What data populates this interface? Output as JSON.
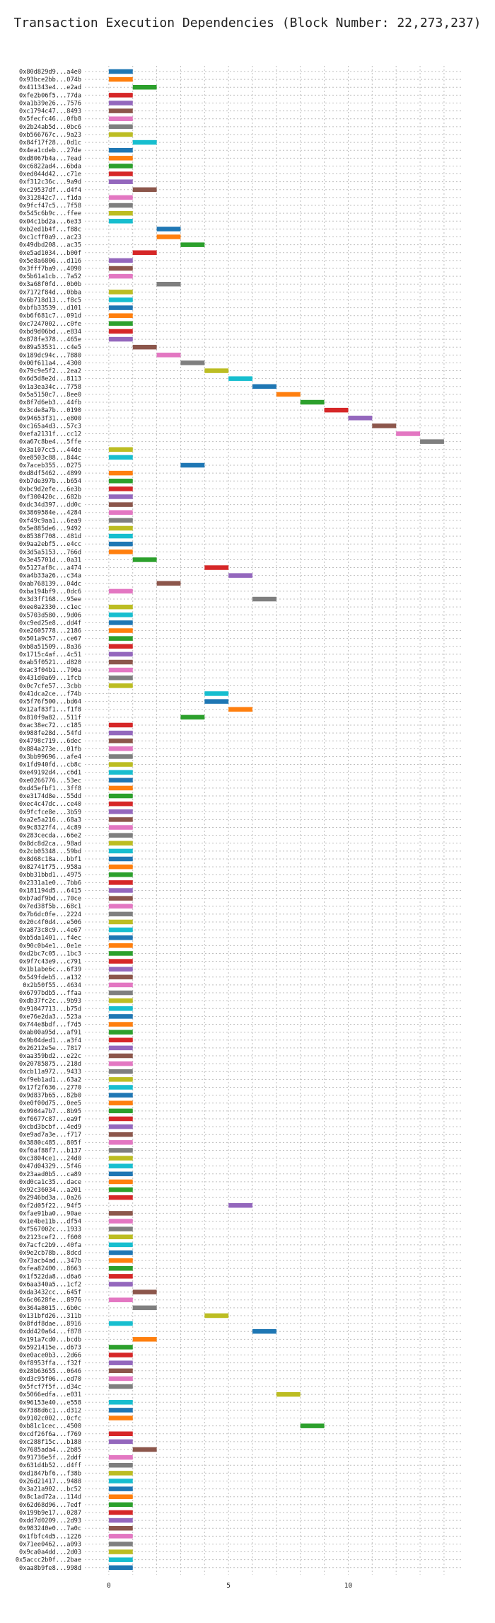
{
  "chart_data": {
    "type": "bar",
    "orientation": "horizontal",
    "title": "Transaction Execution Dependencies (Block Number: 22,273,237)",
    "xlabel": "",
    "ylabel": "",
    "xlim": [
      -1,
      14.8
    ],
    "xticks": [
      0,
      5,
      10
    ],
    "grid": true,
    "palette": [
      "#1f77b4",
      "#ff7f0e",
      "#2ca02c",
      "#d62728",
      "#9467bd",
      "#8c564b",
      "#e377c2",
      "#7f7f7f",
      "#bcbd22",
      "#17becf"
    ],
    "transactions": [
      [
        "0x80d829d9...a4e0",
        0
      ],
      [
        "0x93bce2bb...074b",
        0
      ],
      [
        "0x411343e4...e2ad",
        1
      ],
      [
        "0xfe2b06f5...77da",
        0
      ],
      [
        "0xa1b39e26...7576",
        0
      ],
      [
        "0xc1794c47...8493",
        0
      ],
      [
        "0x5fecfc46...0fb8",
        0
      ],
      [
        "0x2b24ab5d...0bc6",
        0
      ],
      [
        "0xb566767c...9a23",
        0
      ],
      [
        "0x84f17f28...0d1c",
        1
      ],
      [
        "0x4ea1cdeb...27de",
        0
      ],
      [
        "0xd8067b4a...7ead",
        0
      ],
      [
        "0xc6822ad4...6bda",
        0
      ],
      [
        "0xed044d42...c71e",
        0
      ],
      [
        "0xf312c36c...9a9d",
        0
      ],
      [
        "0xc29537df...d4f4",
        1
      ],
      [
        "0x312842c7...f1da",
        0
      ],
      [
        "0x9fcf47c5...7f58",
        0
      ],
      [
        "0x545c6b9c...ffee",
        0
      ],
      [
        "0x04c1bd2a...6e33",
        0
      ],
      [
        "0xb2ed1b4f...f88c",
        2
      ],
      [
        "0xc1cff0a9...ac23",
        2
      ],
      [
        "0x49dbd208...ac35",
        3
      ],
      [
        "0xe5ad1034...b00f",
        1
      ],
      [
        "0x5e8a6806...d116",
        0
      ],
      [
        "0x3fff7ba9...4090",
        0
      ],
      [
        "0x5b61a1cb...7a52",
        0
      ],
      [
        "0x3a68f0fd...0b0b",
        2
      ],
      [
        "0x7172f84d...0bba",
        0
      ],
      [
        "0x6b718d13...f8c5",
        0
      ],
      [
        "0xbfb33539...d101",
        0
      ],
      [
        "0xb6f681c7...091d",
        0
      ],
      [
        "0xc7247002...c0fe",
        0
      ],
      [
        "0xbd9d06bd...e834",
        0
      ],
      [
        "0x878fe378...465e",
        0
      ],
      [
        "0x89a53531...c4e5",
        1
      ],
      [
        "0x189dc94c...7880",
        2
      ],
      [
        "0x00f611a4...4300",
        3
      ],
      [
        "0x79c9e5f2...2ea2",
        4
      ],
      [
        "0x6d5d8e2d...8113",
        5
      ],
      [
        "0x1a3ea34c...7758",
        6
      ],
      [
        "0x5a5150c7...8ee0",
        7
      ],
      [
        "0x8f7d6eb3...44fb",
        8
      ],
      [
        "0x3cde8a7b...0190",
        9
      ],
      [
        "0x94653f31...e800",
        10
      ],
      [
        "0xc165a4d3...57c3",
        11
      ],
      [
        "0xefa2131f...cc12",
        12
      ],
      [
        "0xa67c8be4...5ffe",
        13
      ],
      [
        "0x3a107cc5...44de",
        0
      ],
      [
        "0xe8503c88...844c",
        0
      ],
      [
        "0x7aceb355...0275",
        3
      ],
      [
        "0xd8df5462...4899",
        0
      ],
      [
        "0xb7de397b...b654",
        0
      ],
      [
        "0xbc9d2efe...6e3b",
        0
      ],
      [
        "0xf300420c...682b",
        0
      ],
      [
        "0xdc34d397...dd0c",
        0
      ],
      [
        "0x3869584e...4284",
        0
      ],
      [
        "0xf49c9aa1...6ea9",
        0
      ],
      [
        "0x5e885de6...9492",
        0
      ],
      [
        "0x8538f708...481d",
        0
      ],
      [
        "0x9aa2ebf5...e4cc",
        0
      ],
      [
        "0x3d5a5153...766d",
        0
      ],
      [
        "0x3e45701d...0a31",
        1
      ],
      [
        "0x5127af8c...a474",
        4
      ],
      [
        "0xa4b33a26...c34a",
        5
      ],
      [
        "0xab768139...04dc",
        2
      ],
      [
        "0xba194bf9...0dc6",
        0
      ],
      [
        "0x3d3ff168...95ee",
        6
      ],
      [
        "0xee0a2330...c1ec",
        0
      ],
      [
        "0x5703d580...9d06",
        0
      ],
      [
        "0xc9ed25e8...dd4f",
        0
      ],
      [
        "0xe2605778...2186",
        0
      ],
      [
        "0x501a9c57...ce67",
        0
      ],
      [
        "0xb8a51509...8a36",
        0
      ],
      [
        "0x1715c4af...4c51",
        0
      ],
      [
        "0xab5f0521...d820",
        0
      ],
      [
        "0xac3f04b1...790a",
        0
      ],
      [
        "0x431d0a69...1fcb",
        0
      ],
      [
        "0x0c7cfe57...3cbb",
        0
      ],
      [
        "0x41dca2ce...f74b",
        4
      ],
      [
        "0x5f76f500...bd64",
        4
      ],
      [
        "0x12af83f1...f1f8",
        5
      ],
      [
        "0x810f9a82...511f",
        3
      ],
      [
        "0xac38ec72...c185",
        0
      ],
      [
        "0x988fe28d...54fd",
        0
      ],
      [
        "0x4798c719...6dec",
        0
      ],
      [
        "0x884a273e...01fb",
        0
      ],
      [
        "0x3bb99696...afe4",
        0
      ],
      [
        "0x1fd940fd...cb8c",
        0
      ],
      [
        "0xe49192d4...c6d1",
        0
      ],
      [
        "0xe0266776...53ec",
        0
      ],
      [
        "0xd45efbf1...3ff8",
        0
      ],
      [
        "0xe3174d8e...55dd",
        0
      ],
      [
        "0xec4c47dc...ce40",
        0
      ],
      [
        "0x9fcfce8e...3b59",
        0
      ],
      [
        "0xa2e5a216...68a3",
        0
      ],
      [
        "0x9c8327f4...4c89",
        0
      ],
      [
        "0x283cecda...66e2",
        0
      ],
      [
        "0x8dc8d2ca...98ad",
        0
      ],
      [
        "0x2cb05348...59bd",
        0
      ],
      [
        "0x8d68c18a...bbf1",
        0
      ],
      [
        "0x82741f75...958a",
        0
      ],
      [
        "0xbb31bbd1...4975",
        0
      ],
      [
        "0x2331a1e0...7bb6",
        0
      ],
      [
        "0x181194d5...6415",
        0
      ],
      [
        "0xb7adf9bd...70ce",
        0
      ],
      [
        "0x7ed38f5b...68c1",
        0
      ],
      [
        "0x7b6dc0fe...2224",
        0
      ],
      [
        "0x20c4f0d4...e506",
        0
      ],
      [
        "0xa873c8c9...4e67",
        0
      ],
      [
        "0xb5da1401...f4ec",
        0
      ],
      [
        "0x90c0b4e1...0e1e",
        0
      ],
      [
        "0xd2bc7c05...1bc3",
        0
      ],
      [
        "0x9f7c43e9...c791",
        0
      ],
      [
        "0x1b1abe6c...6f39",
        0
      ],
      [
        "0x549fdeb5...a132",
        0
      ],
      [
        "0x2b50f55...4634",
        0
      ],
      [
        "0x6797bdb5...ffaa",
        0
      ],
      [
        "0xdb37fc2c...9b93",
        0
      ],
      [
        "0x91047713...b75d",
        0
      ],
      [
        "0xe76e2da3...523a",
        0
      ],
      [
        "0x744e8bdf...f7d5",
        0
      ],
      [
        "0xab00a95d...af91",
        0
      ],
      [
        "0x9b04ded1...a3f4",
        0
      ],
      [
        "0x26212e5e...7817",
        0
      ],
      [
        "0xaa359bd2...e22c",
        0
      ],
      [
        "0x20785875...218d",
        0
      ],
      [
        "0xcb11a972...9433",
        0
      ],
      [
        "0xf9eb1ad1...63a2",
        0
      ],
      [
        "0x17f2f636...2770",
        0
      ],
      [
        "0x9d837b65...82b0",
        0
      ],
      [
        "0xe0f00d75...0ee5",
        0
      ],
      [
        "0x9904a7b7...8b95",
        0
      ],
      [
        "0xf6677c87...ea9f",
        0
      ],
      [
        "0xcbd3bcbf...4ed9",
        0
      ],
      [
        "0xe9ad7a3e...f717",
        0
      ],
      [
        "0x3880c485...805f",
        0
      ],
      [
        "0xf6af88f7...b137",
        0
      ],
      [
        "0xc3804ce1...24d0",
        0
      ],
      [
        "0x47d04329...5f46",
        0
      ],
      [
        "0x23aad0b5...ca89",
        0
      ],
      [
        "0xd0ca1c35...dace",
        0
      ],
      [
        "0x92c36034...a201",
        0
      ],
      [
        "0x2946bd3a...0a26",
        0
      ],
      [
        "0xf2d05f22...94f5",
        5
      ],
      [
        "0xfae91ba0...90ae",
        0
      ],
      [
        "0x1e4be11b...df54",
        0
      ],
      [
        "0xf567002c...1933",
        0
      ],
      [
        "0x2123cef2...f600",
        0
      ],
      [
        "0x7acfc2b9...40fa",
        0
      ],
      [
        "0x9e2cb78b...8dcd",
        0
      ],
      [
        "0x73acb4ad...347b",
        0
      ],
      [
        "0xfea82400...8663",
        0
      ],
      [
        "0x1f522da8...d6a6",
        0
      ],
      [
        "0x6aa340a5...1cf2",
        0
      ],
      [
        "0xda3432cc...645f",
        1
      ],
      [
        "0x6c0628fe...8976",
        0
      ],
      [
        "0x364a8015...6b0c",
        1
      ],
      [
        "0x131bfd26...311b",
        4
      ],
      [
        "0x8fdf8dae...8916",
        0
      ],
      [
        "0xdd420a64...f878",
        6
      ],
      [
        "0x191a7cd0...bcdb",
        1
      ],
      [
        "0x5921415e...d673",
        0
      ],
      [
        "0xe0ace0b3...2d66",
        0
      ],
      [
        "0xf8953ffa...f32f",
        0
      ],
      [
        "0x28b63655...0646",
        0
      ],
      [
        "0xd3c95f06...ed70",
        0
      ],
      [
        "0x5fcf7f5f...d34c",
        0
      ],
      [
        "0x5066edfa...e031",
        7
      ],
      [
        "0x96153e40...e558",
        0
      ],
      [
        "0x7388d6c1...d312",
        0
      ],
      [
        "0x9102c002...0cfc",
        0
      ],
      [
        "0xb81c1cec...4500",
        8
      ],
      [
        "0xcdf26f6a...f769",
        0
      ],
      [
        "0xc288f15c...b188",
        0
      ],
      [
        "0x7685ada4...2b85",
        1
      ],
      [
        "0x91736e5f...2ddf",
        0
      ],
      [
        "0x631d4b52...d4ff",
        0
      ],
      [
        "0xd1847bf6...f38b",
        0
      ],
      [
        "0x26d21417...9488",
        0
      ],
      [
        "0x3a21a902...bc52",
        0
      ],
      [
        "0x8c1ad72a...114d",
        0
      ],
      [
        "0x62d68d96...7edf",
        0
      ],
      [
        "0x199b9e17...0287",
        0
      ],
      [
        "0xdd7d0209...2d93",
        0
      ],
      [
        "0x983240e0...7a0c",
        0
      ],
      [
        "0x1fbfc4d5...1226",
        0
      ],
      [
        "0x71ee0462...a093",
        0
      ],
      [
        "0x9ca0a4dd...2d03",
        0
      ],
      [
        "0x5accc2b0f...2bae",
        0
      ],
      [
        "0xaa8b9fe8...998d",
        0
      ]
    ]
  }
}
